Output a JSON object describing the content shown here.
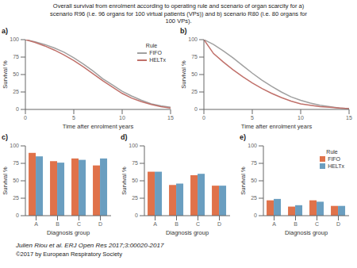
{
  "title": "Overall survival from enrolment according to operating rule and scenario of organ scarcity for a)\nscenario R96 (i.e. 96 organs for 100 virtual patients (VPs)) and b) scenario R80 (i.e. 80 organs for\n100 VPs).",
  "annotations": [
    "Julien Riou et al. ERJ Open Res 2017;3:00020-2017",
    "©2017 by European Respiratory Society"
  ],
  "chart_data": [
    {
      "type": "line",
      "title": "a)",
      "xlabel": "Time after enrolment years",
      "ylabel": "Survival %",
      "x": [
        0,
        1,
        2,
        3,
        4,
        5,
        6,
        7,
        8,
        9,
        10,
        11,
        12,
        13,
        14,
        15
      ],
      "xlim": [
        0,
        15
      ],
      "xticks": [
        0,
        5,
        10,
        15
      ],
      "ylim": [
        0,
        100
      ],
      "yticks": [
        0,
        25,
        50,
        75,
        100
      ],
      "grid": false,
      "legend": "upper right",
      "legend_title": "Rule",
      "series": [
        {
          "name": "FIFO",
          "color": "#a0a0a0",
          "values": [
            100,
            97,
            93,
            88,
            82,
            74,
            65,
            55,
            44,
            35,
            26,
            19,
            13,
            8,
            5,
            3
          ]
        },
        {
          "name": "HELTx",
          "color": "#c0706a",
          "values": [
            100,
            96,
            91,
            85,
            78,
            70,
            61,
            51,
            41,
            32,
            23,
            16,
            11,
            7,
            4,
            2
          ]
        }
      ]
    },
    {
      "type": "line",
      "title": "b)",
      "xlabel": "Time after enrolment years",
      "ylabel": "Survival %",
      "x": [
        0,
        1,
        2,
        3,
        4,
        5,
        6,
        7,
        8,
        9,
        10,
        11,
        12,
        13,
        14,
        15
      ],
      "xlim": [
        0,
        15
      ],
      "xticks": [
        0,
        5,
        10,
        15
      ],
      "ylim": [
        0,
        100
      ],
      "yticks": [
        0,
        25,
        50,
        75,
        100
      ],
      "grid": false,
      "series": [
        {
          "name": "FIFO",
          "color": "#a0a0a0",
          "values": [
            100,
            93,
            84,
            74,
            63,
            52,
            42,
            33,
            25,
            18,
            13,
            9,
            6,
            4,
            2,
            1
          ]
        },
        {
          "name": "HELTx",
          "color": "#c0706a",
          "values": [
            100,
            80,
            68,
            57,
            47,
            38,
            30,
            23,
            17,
            12,
            8,
            6,
            4,
            3,
            2,
            1
          ]
        }
      ]
    },
    {
      "type": "bar",
      "title": "c)",
      "xlabel": "Diagnosis group",
      "ylabel": "Survival %",
      "categories": [
        "A",
        "B",
        "C",
        "D"
      ],
      "ylim": [
        0,
        100
      ],
      "yticks": [
        0,
        25,
        50,
        75,
        100
      ],
      "grid": false,
      "series": [
        {
          "name": "FIFO",
          "color": "#e0724a",
          "values": [
            90,
            78,
            82,
            72
          ]
        },
        {
          "name": "HELTx",
          "color": "#6a9ec0",
          "values": [
            85,
            76,
            80,
            82
          ]
        }
      ]
    },
    {
      "type": "bar",
      "title": "d)",
      "xlabel": "Diagnosis group",
      "ylabel": "Survival %",
      "categories": [
        "A",
        "B",
        "C",
        "D"
      ],
      "ylim": [
        0,
        100
      ],
      "yticks": [
        0,
        25,
        50,
        75,
        100
      ],
      "grid": false,
      "series": [
        {
          "name": "FIFO",
          "color": "#e0724a",
          "values": [
            63,
            44,
            58,
            43
          ]
        },
        {
          "name": "HELTx",
          "color": "#6a9ec0",
          "values": [
            63,
            46,
            60,
            43
          ]
        }
      ]
    },
    {
      "type": "bar",
      "title": "e)",
      "xlabel": "Diagnosis group",
      "ylabel": "Survival %",
      "categories": [
        "A",
        "B",
        "C",
        "D"
      ],
      "ylim": [
        0,
        100
      ],
      "yticks": [
        0,
        25,
        50,
        75,
        100
      ],
      "grid": false,
      "legend": "upper right",
      "legend_title": "Rule",
      "series": [
        {
          "name": "FIFO",
          "color": "#e0724a",
          "values": [
            22,
            13,
            22,
            14
          ]
        },
        {
          "name": "HELTx",
          "color": "#6a9ec0",
          "values": [
            24,
            15,
            20,
            14
          ]
        }
      ]
    }
  ]
}
